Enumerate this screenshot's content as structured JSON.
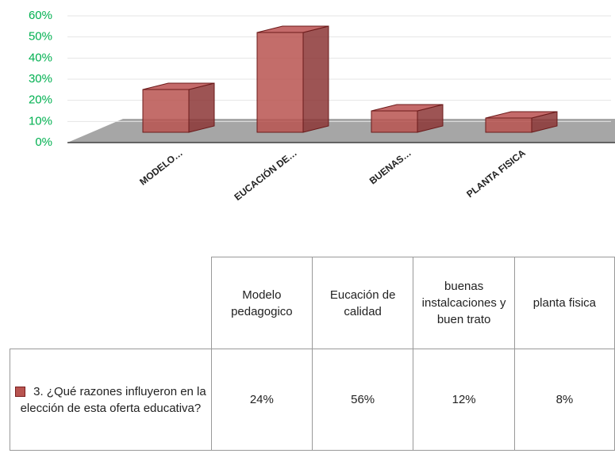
{
  "chart_data": {
    "type": "bar3d",
    "categories": [
      "Modelo pedagogico",
      "Eucación de calidad",
      "buenas instalcaciones y buen trato",
      "planta fisica"
    ],
    "category_labels": [
      "MODELO…",
      "EUCACIÓN DE…",
      "BUENAS…",
      "PLANTA FISICA"
    ],
    "series": [
      {
        "name": "3. ¿Qué razones influyeron en la elección de esta oferta educativa?",
        "color": "#b85450",
        "values": [
          24,
          56,
          12,
          8
        ],
        "value_labels": [
          "24%",
          "56%",
          "12%",
          "8%"
        ]
      }
    ],
    "ylim": [
      0,
      60
    ],
    "yticks": [
      {
        "value": 0,
        "label": "0%"
      },
      {
        "value": 10,
        "label": "10%"
      },
      {
        "value": 20,
        "label": "20%"
      },
      {
        "value": 30,
        "label": "30%"
      },
      {
        "value": 40,
        "label": "40%"
      },
      {
        "value": 50,
        "label": "50%"
      },
      {
        "value": 60,
        "label": "60%"
      }
    ],
    "grid": true
  }
}
